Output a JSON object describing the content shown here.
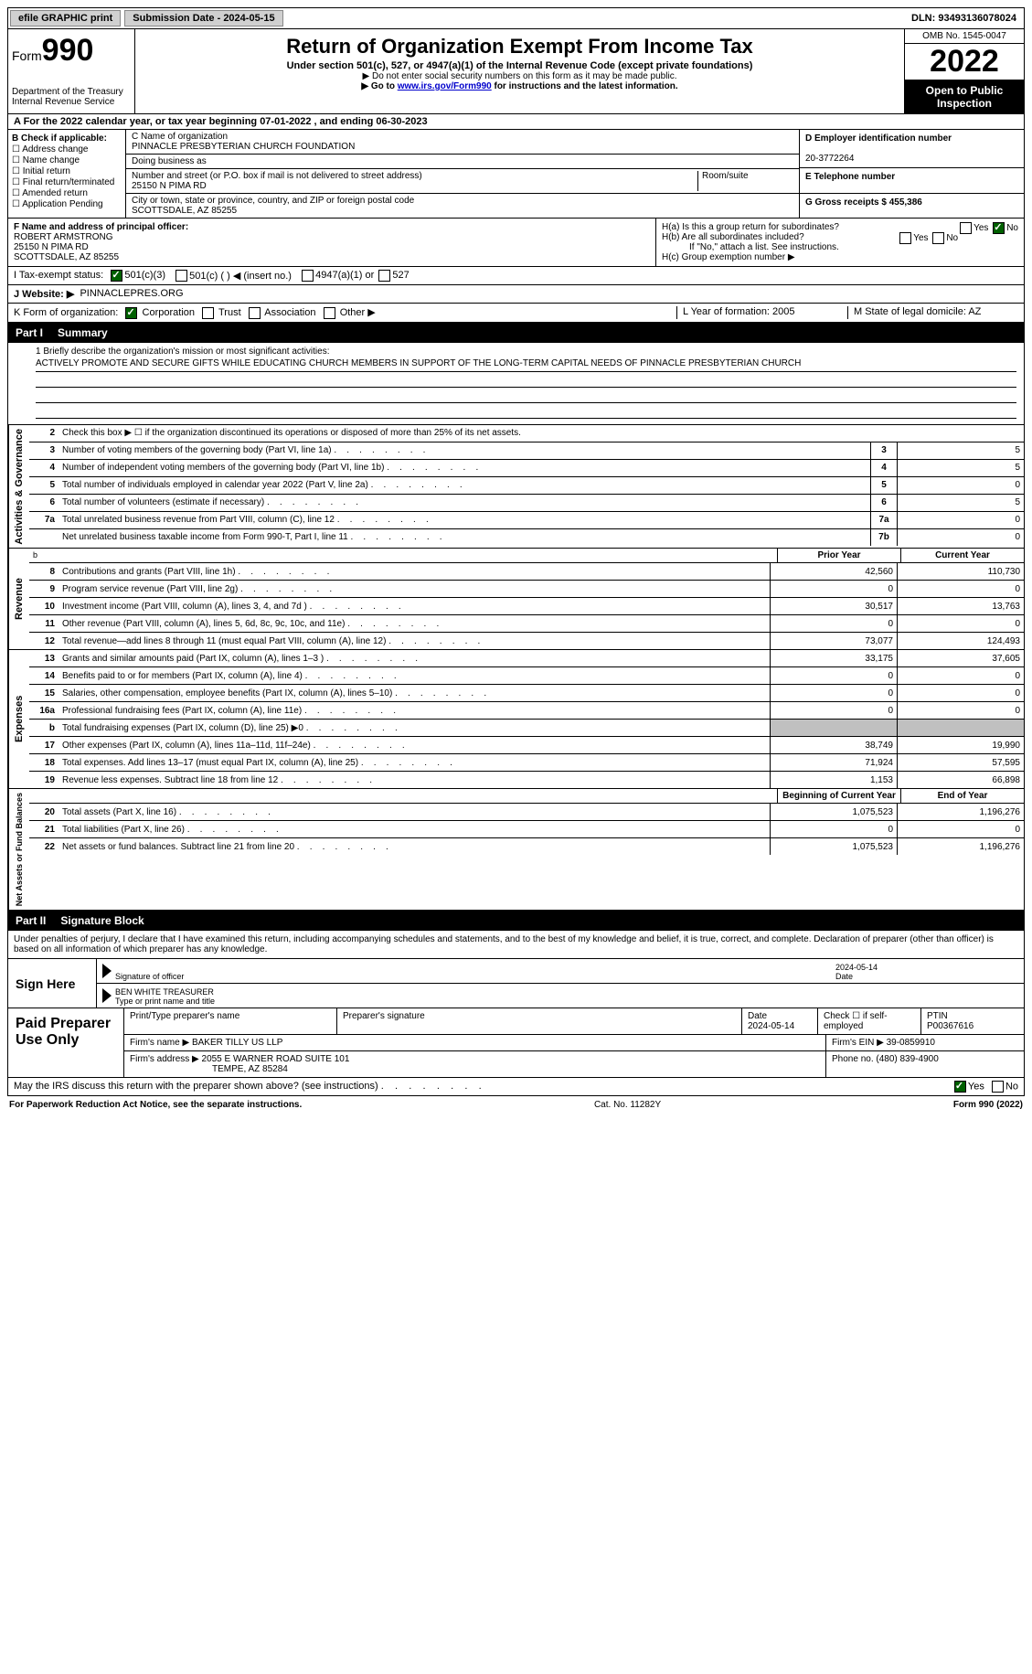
{
  "top": {
    "efile": "efile GRAPHIC print",
    "submission": "Submission Date - 2024-05-15",
    "dln": "DLN: 93493136078024"
  },
  "hdr": {
    "form": "Form",
    "num": "990",
    "dept": "Department of the Treasury Internal Revenue Service",
    "title": "Return of Organization Exempt From Income Tax",
    "sub1": "Under section 501(c), 527, or 4947(a)(1) of the Internal Revenue Code (except private foundations)",
    "sub2": "▶ Do not enter social security numbers on this form as it may be made public.",
    "sub3a": "▶ Go to ",
    "sub3link": "www.irs.gov/Form990",
    "sub3b": " for instructions and the latest information.",
    "omb": "OMB No. 1545-0047",
    "year": "2022",
    "otp": "Open to Public Inspection"
  },
  "a": "A For the 2022 calendar year, or tax year beginning 07-01-2022    , and ending 06-30-2023",
  "b": {
    "label": "B Check if applicable:",
    "opts": [
      "☐ Address change",
      "☐ Name change",
      "☐ Initial return",
      "☐ Final return/terminated",
      "☐ Amended return",
      "☐ Application Pending"
    ]
  },
  "c": {
    "l1": "C Name of organization",
    "name": "PINNACLE PRESBYTERIAN CHURCH FOUNDATION",
    "dba": "Doing business as",
    "l2": "Number and street (or P.O. box if mail is not delivered to street address)",
    "room": "Room/suite",
    "addr": "25150 N PIMA RD",
    "l3": "City or town, state or province, country, and ZIP or foreign postal code",
    "city": "SCOTTSDALE, AZ  85255"
  },
  "d": {
    "label": "D Employer identification number",
    "val": "20-3772264"
  },
  "e": {
    "label": "E Telephone number",
    "val": ""
  },
  "g": {
    "label": "G Gross receipts $ 455,386"
  },
  "f": {
    "label": "F  Name and address of principal officer:",
    "name": "ROBERT ARMSTRONG",
    "addr": "25150 N PIMA RD",
    "city": "SCOTTSDALE, AZ  85255"
  },
  "h": {
    "a": "H(a)  Is this a group return for subordinates?",
    "ano": "No",
    "b": "H(b)  Are all subordinates included?",
    "bnote": "If \"No,\" attach a list. See instructions.",
    "c": "H(c)  Group exemption number ▶"
  },
  "i": {
    "label": "I    Tax-exempt status:",
    "o1": "501(c)(3)",
    "o2": "501(c) (  ) ◀ (insert no.)",
    "o3": "4947(a)(1) or",
    "o4": "527"
  },
  "j": {
    "label": "J    Website: ▶",
    "val": "PINNACLEPRES.ORG"
  },
  "k": {
    "label": "K Form of organization:",
    "o1": "Corporation",
    "o2": "Trust",
    "o3": "Association",
    "o4": "Other ▶"
  },
  "l": {
    "label": "L Year of formation: 2005"
  },
  "m": {
    "label": "M State of legal domicile: AZ"
  },
  "part1": {
    "pn": "Part I",
    "title": "Summary"
  },
  "mission": {
    "label": "1  Briefly describe the organization's mission or most significant activities:",
    "text": "ACTIVELY PROMOTE AND SECURE GIFTS WHILE EDUCATING CHURCH MEMBERS IN SUPPORT OF THE LONG-TERM CAPITAL NEEDS OF PINNACLE PRESBYTERIAN CHURCH"
  },
  "gov": {
    "label": "Activities & Governance",
    "r2": "Check this box ▶ ☐  if the organization discontinued its operations or disposed of more than 25% of its net assets.",
    "rows": [
      {
        "n": "3",
        "d": "Number of voting members of the governing body (Part VI, line 1a)",
        "b": "3",
        "v": "5"
      },
      {
        "n": "4",
        "d": "Number of independent voting members of the governing body (Part VI, line 1b)",
        "b": "4",
        "v": "5"
      },
      {
        "n": "5",
        "d": "Total number of individuals employed in calendar year 2022 (Part V, line 2a)",
        "b": "5",
        "v": "0"
      },
      {
        "n": "6",
        "d": "Total number of volunteers (estimate if necessary)",
        "b": "6",
        "v": "5"
      },
      {
        "n": "7a",
        "d": "Total unrelated business revenue from Part VIII, column (C), line 12",
        "b": "7a",
        "v": "0"
      },
      {
        "n": "",
        "d": "Net unrelated business taxable income from Form 990-T, Part I, line 11",
        "b": "7b",
        "v": "0"
      }
    ]
  },
  "rev": {
    "label": "Revenue",
    "h1": "Prior Year",
    "h2": "Current Year",
    "rows": [
      {
        "n": "8",
        "d": "Contributions and grants (Part VIII, line 1h)",
        "v1": "42,560",
        "v2": "110,730"
      },
      {
        "n": "9",
        "d": "Program service revenue (Part VIII, line 2g)",
        "v1": "0",
        "v2": "0"
      },
      {
        "n": "10",
        "d": "Investment income (Part VIII, column (A), lines 3, 4, and 7d )",
        "v1": "30,517",
        "v2": "13,763"
      },
      {
        "n": "11",
        "d": "Other revenue (Part VIII, column (A), lines 5, 6d, 8c, 9c, 10c, and 11e)",
        "v1": "0",
        "v2": "0"
      },
      {
        "n": "12",
        "d": "Total revenue—add lines 8 through 11 (must equal Part VIII, column (A), line 12)",
        "v1": "73,077",
        "v2": "124,493"
      }
    ]
  },
  "exp": {
    "label": "Expenses",
    "rows": [
      {
        "n": "13",
        "d": "Grants and similar amounts paid (Part IX, column (A), lines 1–3 )",
        "v1": "33,175",
        "v2": "37,605"
      },
      {
        "n": "14",
        "d": "Benefits paid to or for members (Part IX, column (A), line 4)",
        "v1": "0",
        "v2": "0"
      },
      {
        "n": "15",
        "d": "Salaries, other compensation, employee benefits (Part IX, column (A), lines 5–10)",
        "v1": "0",
        "v2": "0"
      },
      {
        "n": "16a",
        "d": "Professional fundraising fees (Part IX, column (A), line 11e)",
        "v1": "0",
        "v2": "0"
      },
      {
        "n": "b",
        "d": "Total fundraising expenses (Part IX, column (D), line 25) ▶0",
        "v1": "grey",
        "v2": "grey"
      },
      {
        "n": "17",
        "d": "Other expenses (Part IX, column (A), lines 11a–11d, 11f–24e)",
        "v1": "38,749",
        "v2": "19,990"
      },
      {
        "n": "18",
        "d": "Total expenses. Add lines 13–17 (must equal Part IX, column (A), line 25)",
        "v1": "71,924",
        "v2": "57,595"
      },
      {
        "n": "19",
        "d": "Revenue less expenses. Subtract line 18 from line 12",
        "v1": "1,153",
        "v2": "66,898"
      }
    ]
  },
  "net": {
    "label": "Net Assets or Fund Balances",
    "h1": "Beginning of Current Year",
    "h2": "End of Year",
    "rows": [
      {
        "n": "20",
        "d": "Total assets (Part X, line 16)",
        "v1": "1,075,523",
        "v2": "1,196,276"
      },
      {
        "n": "21",
        "d": "Total liabilities (Part X, line 26)",
        "v1": "0",
        "v2": "0"
      },
      {
        "n": "22",
        "d": "Net assets or fund balances. Subtract line 21 from line 20",
        "v1": "1,075,523",
        "v2": "1,196,276"
      }
    ]
  },
  "part2": {
    "pn": "Part II",
    "title": "Signature Block"
  },
  "sigtext": "Under penalties of perjury, I declare that I have examined this return, including accompanying schedules and statements, and to the best of my knowledge and belief, it is true, correct, and complete. Declaration of preparer (other than officer) is based on all information of which preparer has any knowledge.",
  "sign": {
    "label": "Sign Here",
    "l1a": "Signature of officer",
    "l1b": "Date",
    "date": "2024-05-14",
    "l2name": "BEN WHITE  TREASURER",
    "l2": "Type or print name and title"
  },
  "prep": {
    "label": "Paid Preparer Use Only",
    "h1": "Print/Type preparer's name",
    "h2": "Preparer's signature",
    "h3": "Date",
    "date": "2024-05-14",
    "h4": "Check ☐ if self-employed",
    "h5": "PTIN",
    "ptin": "P00367616",
    "fn": "Firm's name      ▶ BAKER TILLY US LLP",
    "fein": "Firm's EIN ▶ 39-0859910",
    "fa": "Firm's address ▶ 2055 E WARNER ROAD SUITE 101",
    "fa2": "TEMPE, AZ  85284",
    "ph": "Phone no. (480) 839-4900"
  },
  "may": "May the IRS discuss this return with the preparer shown above? (see instructions)",
  "foot": {
    "l": "For Paperwork Reduction Act Notice, see the separate instructions.",
    "m": "Cat. No. 11282Y",
    "r": "Form 990 (2022)"
  }
}
